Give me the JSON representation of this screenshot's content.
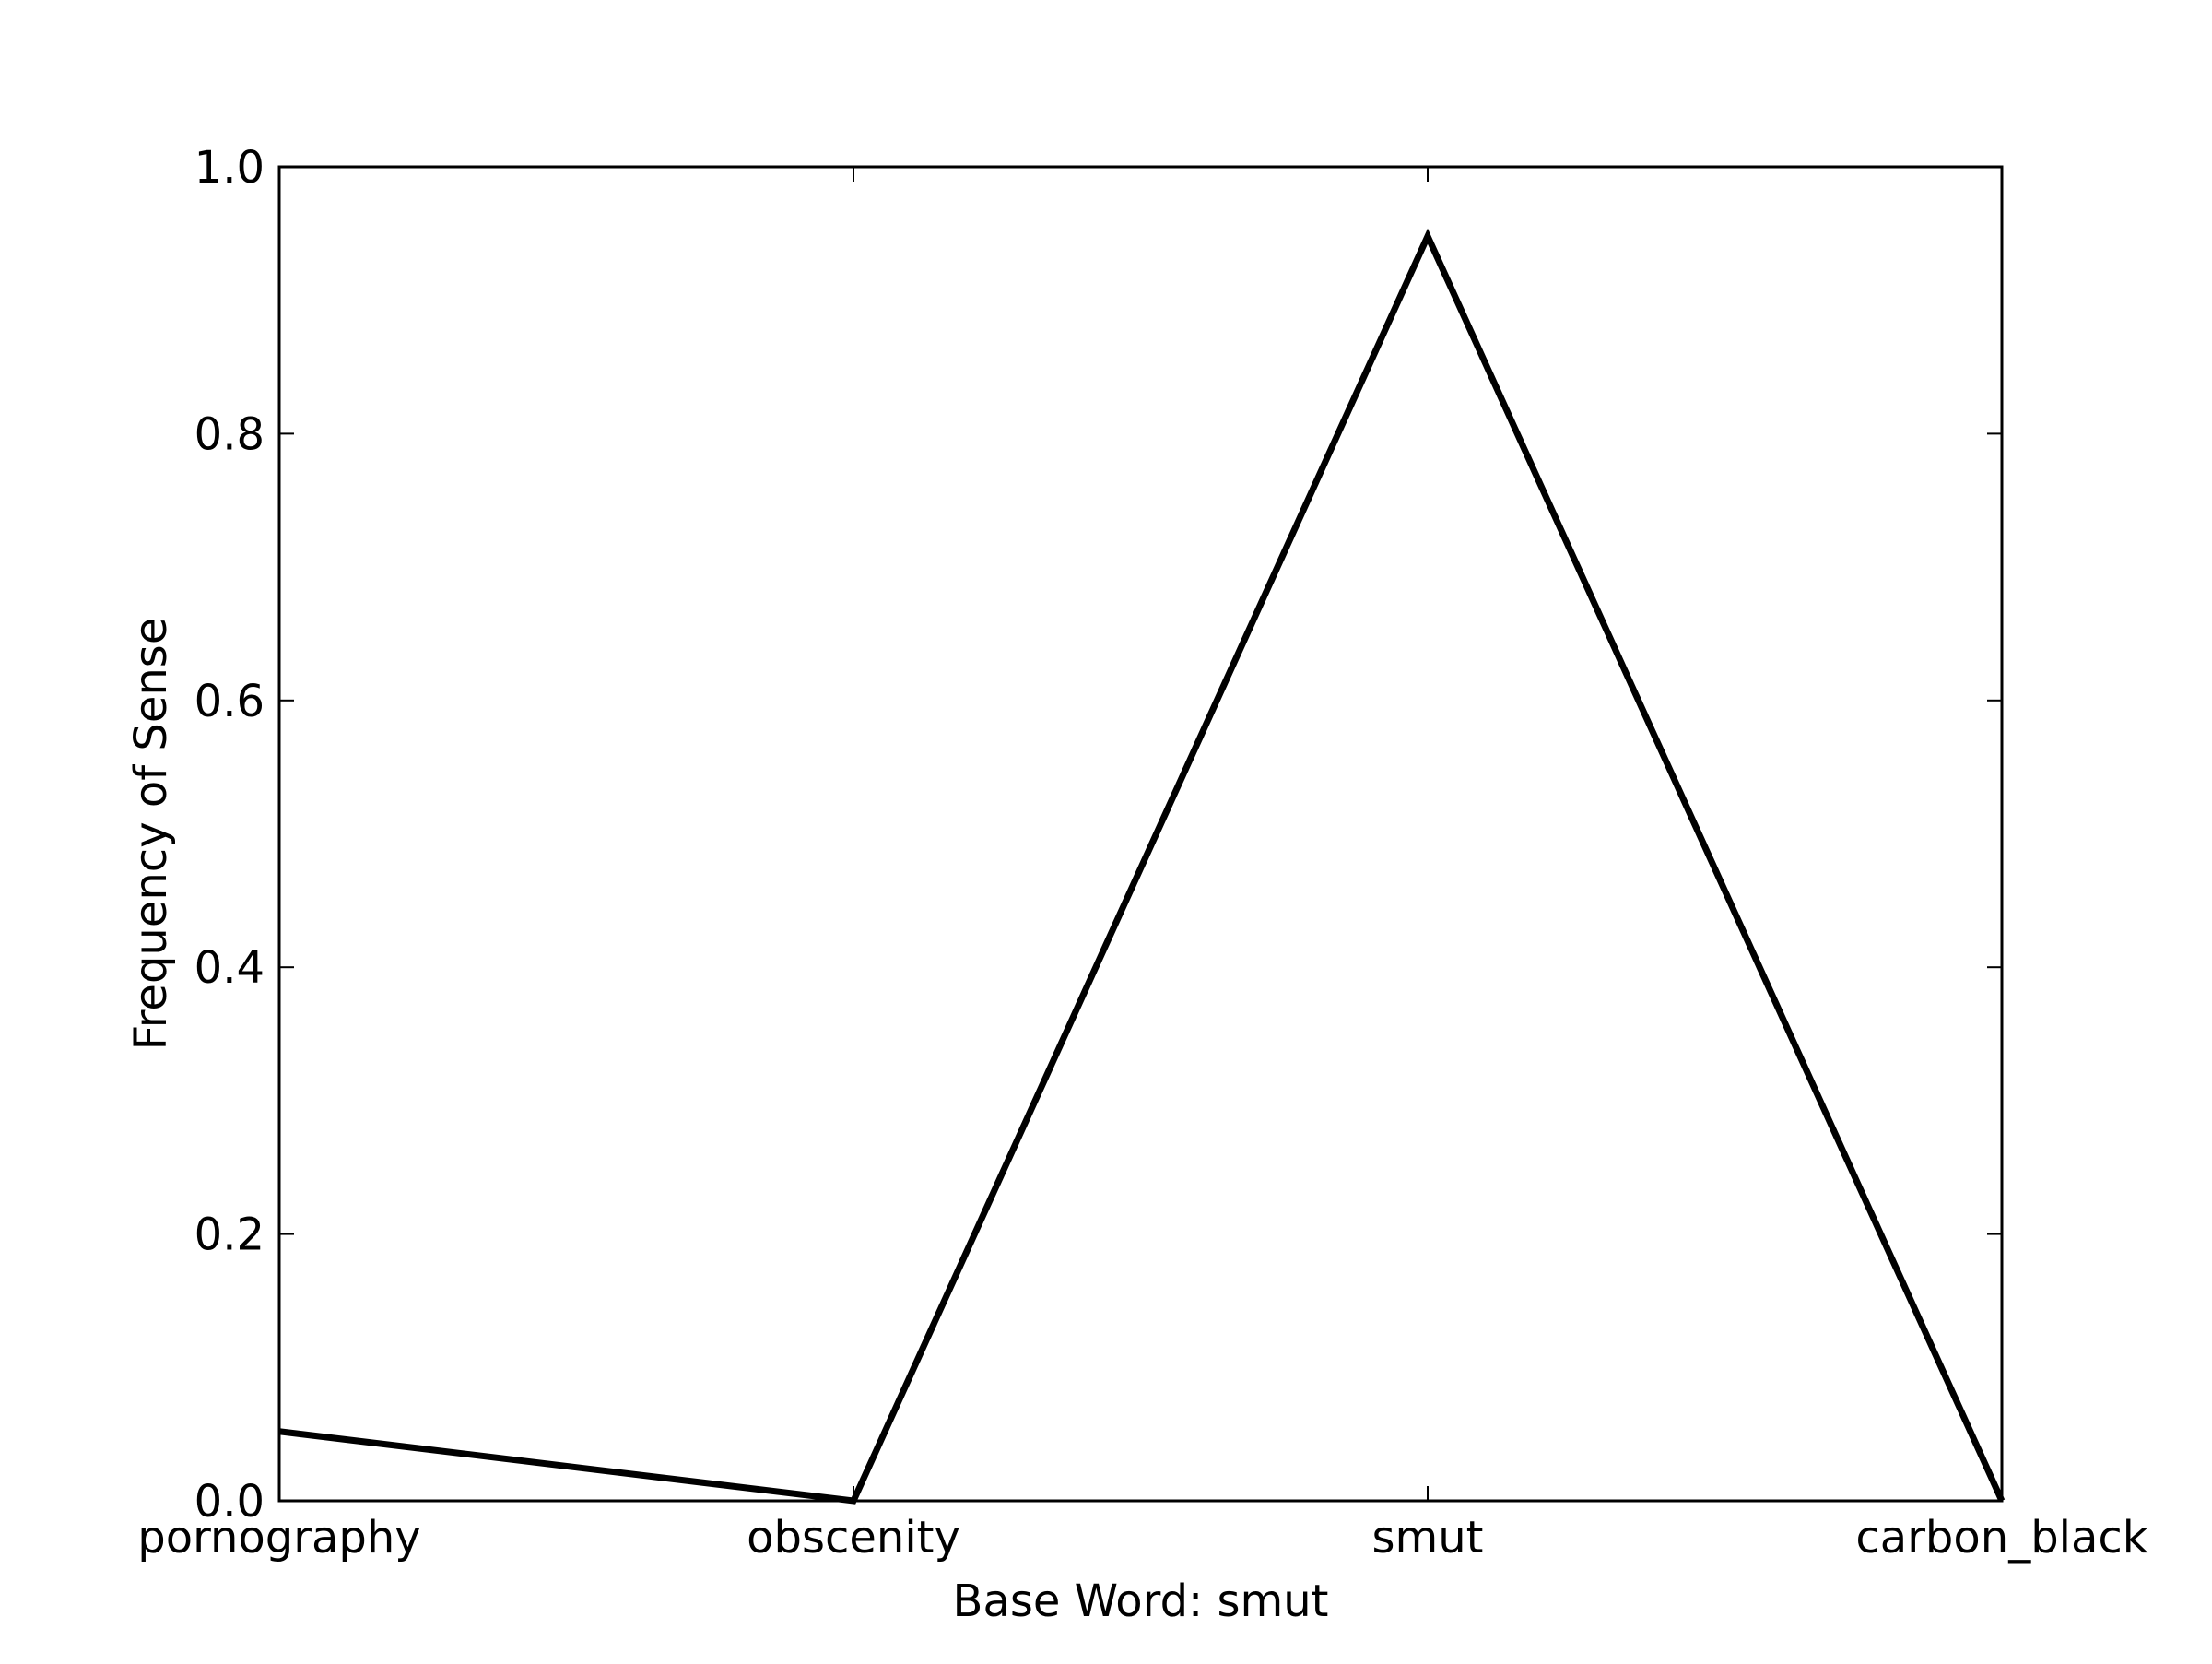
{
  "chart_data": {
    "type": "line",
    "title": "",
    "xlabel": "Base Word: smut",
    "ylabel": "Frequency of Sense",
    "categories": [
      "pornography",
      "obscenity",
      "smut",
      "carbon_black"
    ],
    "series": [
      {
        "values": [
          0.052,
          0.0,
          0.948,
          0.0
        ]
      }
    ],
    "ylim": [
      0.0,
      1.0
    ],
    "yticks": [
      0.0,
      0.2,
      0.4,
      0.6,
      0.8,
      1.0
    ],
    "ytick_labels": [
      "0.0",
      "0.2",
      "0.4",
      "0.6",
      "0.8",
      "1.0"
    ],
    "grid": false,
    "line_color": "#000000"
  }
}
